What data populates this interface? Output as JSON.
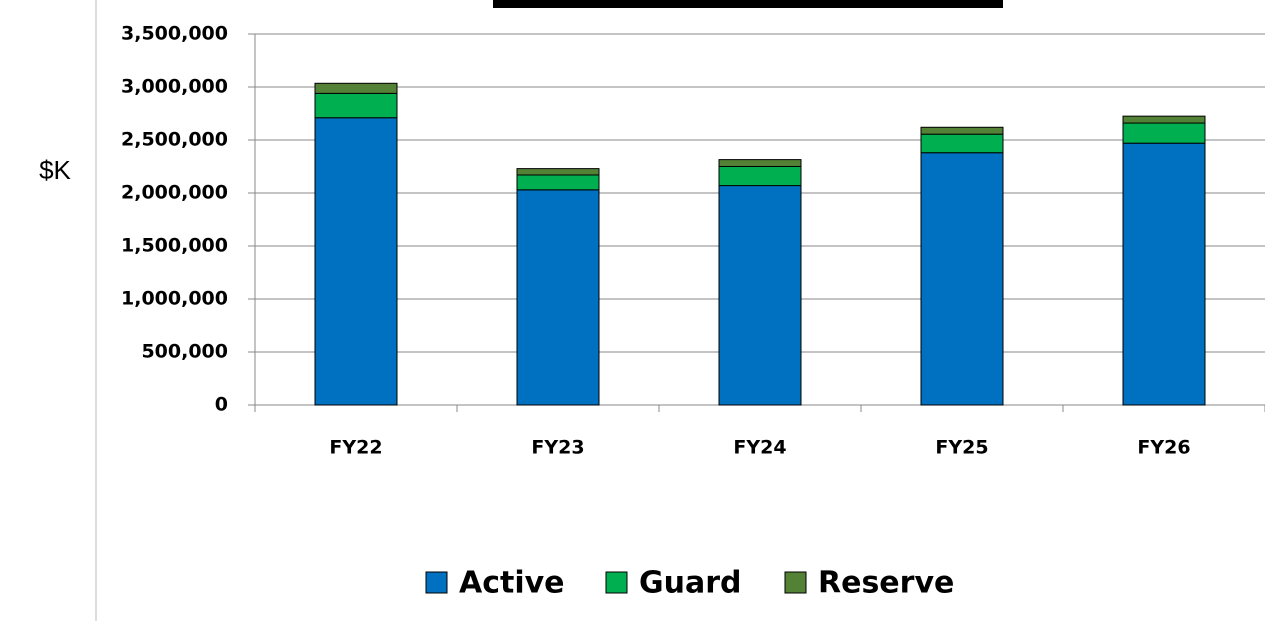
{
  "chart_data": {
    "type": "stacked_bar",
    "y_label": "$K",
    "categories": [
      "FY22",
      "FY23",
      "FY24",
      "FY25",
      "FY26"
    ],
    "series": [
      {
        "name": "Active",
        "color": "#0070c0",
        "values": [
          2710000,
          2030000,
          2070000,
          2380000,
          2470000
        ]
      },
      {
        "name": "Guard",
        "color": "#00b050",
        "values": [
          230000,
          140000,
          180000,
          175000,
          190000
        ]
      },
      {
        "name": "Reserve",
        "color": "#538135",
        "values": [
          95000,
          60000,
          65000,
          65000,
          65000
        ]
      }
    ],
    "ylim": [
      0,
      3500000
    ],
    "yticks": [
      0,
      {
        "value": 500000,
        "label": "500,000"
      },
      {
        "value": 1000000,
        "label": "1,000,000"
      },
      {
        "value": 1500000,
        "label": "1,500,000"
      },
      {
        "value": 2000000,
        "label": "2,000,000"
      },
      {
        "value": 2500000,
        "label": "2,500,000"
      },
      {
        "value": 3000000,
        "label": "3,000,000"
      },
      {
        "value": 3500000,
        "label": "3,500,000"
      }
    ],
    "grid": true,
    "legend": "bottom"
  }
}
